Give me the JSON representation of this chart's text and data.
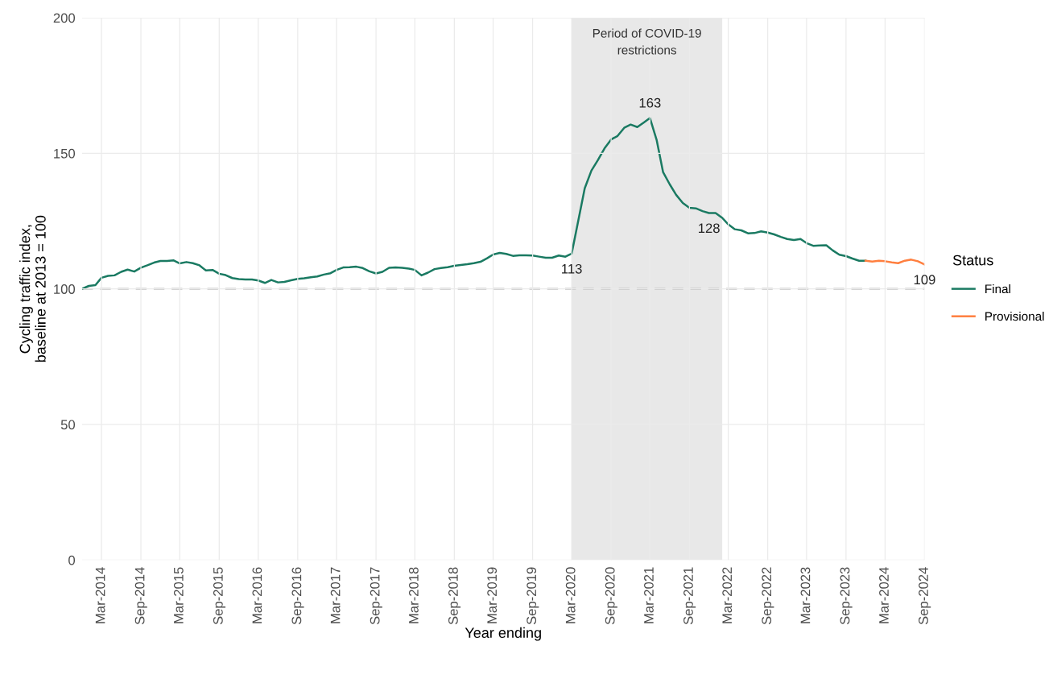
{
  "chart_data": {
    "type": "line",
    "xlabel": "Year ending",
    "ylabel": "Cycling traffic index,\nbaseline at 2013 = 100",
    "legend_title": "Status",
    "legend": "right",
    "grid": true,
    "line_style": "solid",
    "xlim": [
      "2013-12",
      "2024-09"
    ],
    "xticks": [
      {
        "value": "2014-03",
        "label": "Mar-2014"
      },
      {
        "value": "2014-09",
        "label": "Sep-2014"
      },
      {
        "value": "2015-03",
        "label": "Mar-2015"
      },
      {
        "value": "2015-09",
        "label": "Sep-2015"
      },
      {
        "value": "2016-03",
        "label": "Mar-2016"
      },
      {
        "value": "2016-09",
        "label": "Sep-2016"
      },
      {
        "value": "2017-03",
        "label": "Mar-2017"
      },
      {
        "value": "2017-09",
        "label": "Sep-2017"
      },
      {
        "value": "2018-03",
        "label": "Mar-2018"
      },
      {
        "value": "2018-09",
        "label": "Sep-2018"
      },
      {
        "value": "2019-03",
        "label": "Mar-2019"
      },
      {
        "value": "2019-09",
        "label": "Sep-2019"
      },
      {
        "value": "2020-03",
        "label": "Mar-2020"
      },
      {
        "value": "2020-09",
        "label": "Sep-2020"
      },
      {
        "value": "2021-03",
        "label": "Mar-2021"
      },
      {
        "value": "2021-09",
        "label": "Sep-2021"
      },
      {
        "value": "2022-03",
        "label": "Mar-2022"
      },
      {
        "value": "2022-09",
        "label": "Sep-2022"
      },
      {
        "value": "2023-03",
        "label": "Mar-2023"
      },
      {
        "value": "2023-09",
        "label": "Sep-2023"
      },
      {
        "value": "2024-03",
        "label": "Mar-2024"
      },
      {
        "value": "2024-09",
        "label": "Sep-2024"
      }
    ],
    "ylim": [
      0,
      200
    ],
    "yticks": [
      0,
      50,
      100,
      150,
      200
    ],
    "ref_lines": [
      {
        "axis": "y",
        "value": 100,
        "color": "#bdbdbd",
        "line_style": "dashed"
      }
    ],
    "bands": [
      {
        "axis": "x",
        "from": "2020-03",
        "to": "2022-02",
        "label": "Period of COVID-19\nrestrictions",
        "color": "#e8e8e8"
      }
    ],
    "annotations": [
      {
        "text": "113",
        "x": "2020-03",
        "y": 113
      },
      {
        "text": "163",
        "x": "2021-03",
        "y": 163
      },
      {
        "text": "128",
        "x": "2021-12",
        "y": 128
      },
      {
        "text": "109",
        "x": "2024-09",
        "y": 109
      }
    ],
    "series": [
      {
        "name": "Final",
        "color": "#1a7a62",
        "x": [
          "2013-12",
          "2014-01",
          "2014-02",
          "2014-03",
          "2014-04",
          "2014-05",
          "2014-06",
          "2014-07",
          "2014-08",
          "2014-09",
          "2014-10",
          "2014-11",
          "2014-12",
          "2015-01",
          "2015-02",
          "2015-03",
          "2015-04",
          "2015-05",
          "2015-06",
          "2015-07",
          "2015-08",
          "2015-09",
          "2015-10",
          "2015-11",
          "2015-12",
          "2016-01",
          "2016-02",
          "2016-03",
          "2016-04",
          "2016-05",
          "2016-06",
          "2016-07",
          "2016-08",
          "2016-09",
          "2016-10",
          "2016-11",
          "2016-12",
          "2017-01",
          "2017-02",
          "2017-03",
          "2017-04",
          "2017-05",
          "2017-06",
          "2017-07",
          "2017-08",
          "2017-09",
          "2017-10",
          "2017-11",
          "2017-12",
          "2018-01",
          "2018-02",
          "2018-03",
          "2018-04",
          "2018-05",
          "2018-06",
          "2018-07",
          "2018-08",
          "2018-09",
          "2018-10",
          "2018-11",
          "2018-12",
          "2019-01",
          "2019-02",
          "2019-03",
          "2019-04",
          "2019-05",
          "2019-06",
          "2019-07",
          "2019-08",
          "2019-09",
          "2019-10",
          "2019-11",
          "2019-12",
          "2020-01",
          "2020-02",
          "2020-03",
          "2020-04",
          "2020-05",
          "2020-06",
          "2020-07",
          "2020-08",
          "2020-09",
          "2020-10",
          "2020-11",
          "2020-12",
          "2021-01",
          "2021-02",
          "2021-03",
          "2021-04",
          "2021-05",
          "2021-06",
          "2021-07",
          "2021-08",
          "2021-09",
          "2021-10",
          "2021-11",
          "2021-12",
          "2022-01",
          "2022-02",
          "2022-03",
          "2022-04",
          "2022-05",
          "2022-06",
          "2022-07",
          "2022-08",
          "2022-09",
          "2022-10",
          "2022-11",
          "2022-12",
          "2023-01",
          "2023-02",
          "2023-03",
          "2023-04",
          "2023-05",
          "2023-06",
          "2023-07",
          "2023-08",
          "2023-09",
          "2023-10",
          "2023-11",
          "2023-12"
        ],
        "values": [
          100,
          101.1,
          101.4,
          104.1,
          104.8,
          105.0,
          106.3,
          107.1,
          106.4,
          107.8,
          108.7,
          109.7,
          110.3,
          110.3,
          110.5,
          109.4,
          109.9,
          109.5,
          108.7,
          106.8,
          107.0,
          105.6,
          105.1,
          104.0,
          103.6,
          103.5,
          103.5,
          103.1,
          102.2,
          103.3,
          102.4,
          102.6,
          103.2,
          103.7,
          103.9,
          104.3,
          104.6,
          105.3,
          105.8,
          107.0,
          107.9,
          108.0,
          108.2,
          107.7,
          106.5,
          105.7,
          106.3,
          107.8,
          107.9,
          107.8,
          107.5,
          107.0,
          105.0,
          106.0,
          107.3,
          107.7,
          108.0,
          108.5,
          108.8,
          109.1,
          109.5,
          110.0,
          111.3,
          112.7,
          113.3,
          112.9,
          112.2,
          112.4,
          112.4,
          112.3,
          111.9,
          111.5,
          111.5,
          112.3,
          111.9,
          113.0,
          125.2,
          137.1,
          143.6,
          147.5,
          151.8,
          155.1,
          156.4,
          159.4,
          160.6,
          159.7,
          161.4,
          163.0,
          155.0,
          143.1,
          138.6,
          134.7,
          131.7,
          129.9,
          129.7,
          128.7,
          128.0,
          128.0,
          126.2,
          123.8,
          122.0,
          121.6,
          120.5,
          120.6,
          121.2,
          120.8,
          120.1,
          119.2,
          118.4,
          118.0,
          118.4,
          116.9,
          115.9,
          116.0,
          116.1,
          114.2,
          112.6,
          112.1,
          111.2,
          110.4,
          110.4
        ]
      },
      {
        "name": "Provisional",
        "color": "#ff7f3f",
        "x": [
          "2023-12",
          "2024-01",
          "2024-02",
          "2024-03",
          "2024-04",
          "2024-05",
          "2024-06",
          "2024-07",
          "2024-08",
          "2024-09"
        ],
        "values": [
          110.4,
          110.1,
          110.4,
          110.2,
          109.8,
          109.5,
          110.4,
          110.8,
          110.2,
          109.0
        ]
      }
    ]
  }
}
